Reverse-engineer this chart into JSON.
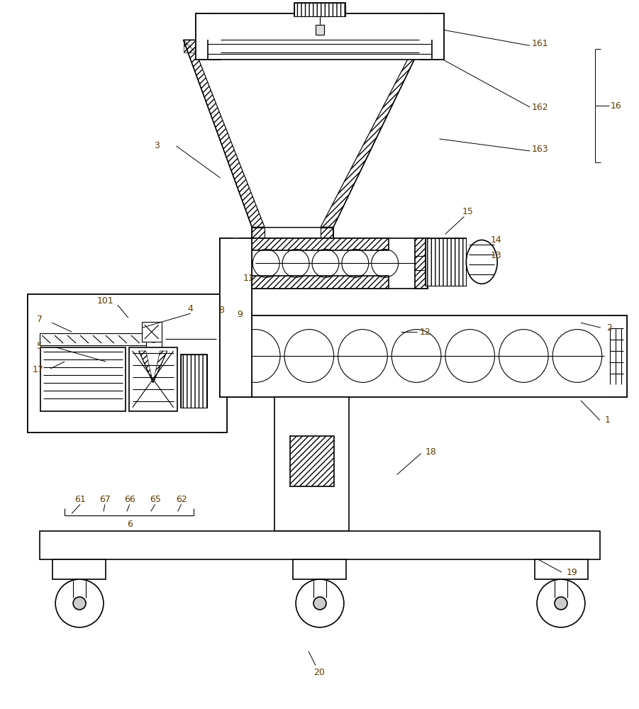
{
  "bg_color": "#ffffff",
  "line_color": "#000000",
  "label_color": "#5C3A00",
  "lw": 1.2,
  "lw2": 0.8,
  "fs": 9
}
